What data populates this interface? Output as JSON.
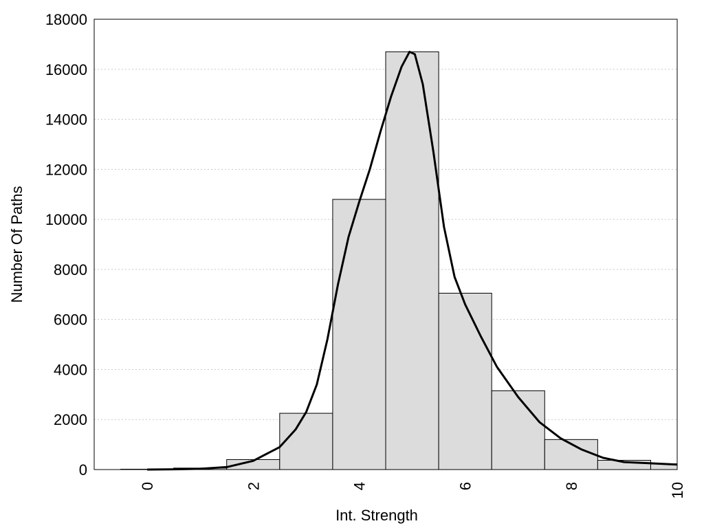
{
  "chart_data": {
    "type": "bar",
    "title": "",
    "xlabel": "Int. Strength",
    "ylabel": "Number Of Paths",
    "xlim": [
      -1,
      10
    ],
    "ylim": [
      0,
      18000
    ],
    "x_ticks": [
      0,
      2,
      4,
      6,
      8,
      10
    ],
    "y_ticks": [
      0,
      2000,
      4000,
      6000,
      8000,
      10000,
      12000,
      14000,
      16000,
      18000
    ],
    "grid": "horizontal dotted",
    "bar_fill": "#dcdcdc",
    "bar_stroke": "#000000",
    "bins": [
      {
        "x": 0,
        "value": 15
      },
      {
        "x": 1,
        "value": 60
      },
      {
        "x": 2,
        "value": 400
      },
      {
        "x": 3,
        "value": 2250
      },
      {
        "x": 4,
        "value": 10800
      },
      {
        "x": 5,
        "value": 16700
      },
      {
        "x": 6,
        "value": 7050
      },
      {
        "x": 7,
        "value": 3150
      },
      {
        "x": 8,
        "value": 1200
      },
      {
        "x": 9,
        "value": 370
      },
      {
        "x": 10,
        "value": 230
      }
    ],
    "series": [
      {
        "type": "line",
        "x": [
          0,
          0.5,
          1,
          1.5,
          2,
          2.5,
          2.8,
          3,
          3.2,
          3.4,
          3.6,
          3.8,
          4,
          4.2,
          4.4,
          4.6,
          4.8,
          4.95,
          5.05,
          5.2,
          5.4,
          5.6,
          5.8,
          6,
          6.3,
          6.6,
          7,
          7.4,
          7.8,
          8.2,
          8.6,
          9,
          9.5,
          10
        ],
        "y": [
          0,
          10,
          30,
          100,
          350,
          900,
          1600,
          2300,
          3400,
          5200,
          7400,
          9300,
          10700,
          12000,
          13500,
          14900,
          16100,
          16700,
          16600,
          15400,
          12700,
          9700,
          7700,
          6600,
          5300,
          4100,
          2900,
          1900,
          1250,
          800,
          470,
          300,
          250,
          200
        ]
      }
    ]
  }
}
